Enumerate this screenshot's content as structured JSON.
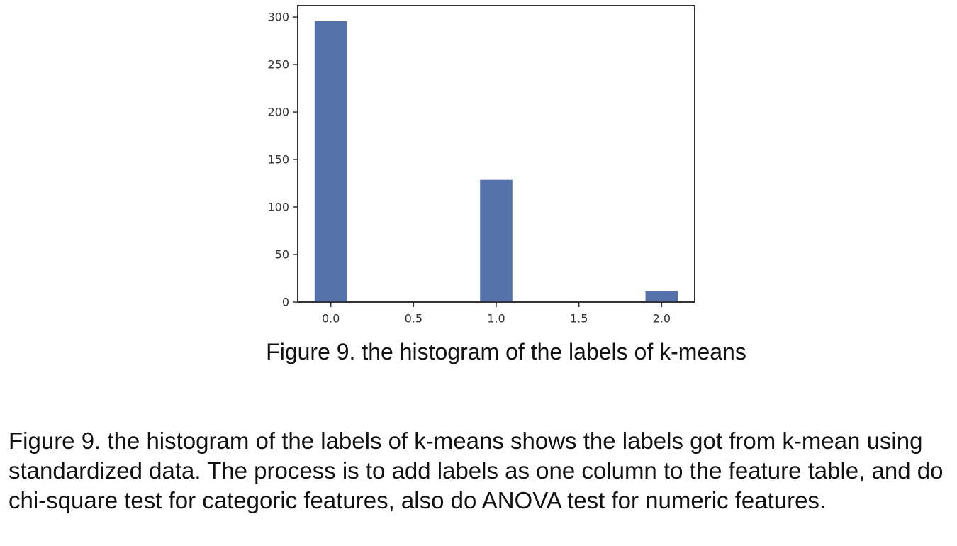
{
  "figure_caption": "Figure 9. the histogram of the labels of k-means",
  "paragraph": "Figure 9. the histogram of the labels of k-means shows the labels got from k-mean using standardized data. The process is to add labels as one column to the feature table, and do chi-square test for categoric features, also do ANOVA test for numeric features.",
  "colors": {
    "bar": "#5572ab",
    "axes": "#333333"
  },
  "chart_data": {
    "type": "bar",
    "title": "",
    "xlabel": "",
    "ylabel": "",
    "xlim": [
      -0.2,
      2.2
    ],
    "ylim": [
      0,
      312
    ],
    "grid": false,
    "x_ticks": [
      "0.0",
      "0.5",
      "1.0",
      "1.5",
      "2.0"
    ],
    "x_tick_values": [
      0.0,
      0.5,
      1.0,
      1.5,
      2.0
    ],
    "y_ticks": [
      "0",
      "50",
      "100",
      "150",
      "200",
      "250",
      "300"
    ],
    "y_tick_values": [
      0,
      50,
      100,
      150,
      200,
      250,
      300
    ],
    "bin_width": 0.2,
    "bars": [
      {
        "x": 0.0,
        "value": 296
      },
      {
        "x": 1.0,
        "value": 129
      },
      {
        "x": 2.0,
        "value": 12
      }
    ]
  }
}
